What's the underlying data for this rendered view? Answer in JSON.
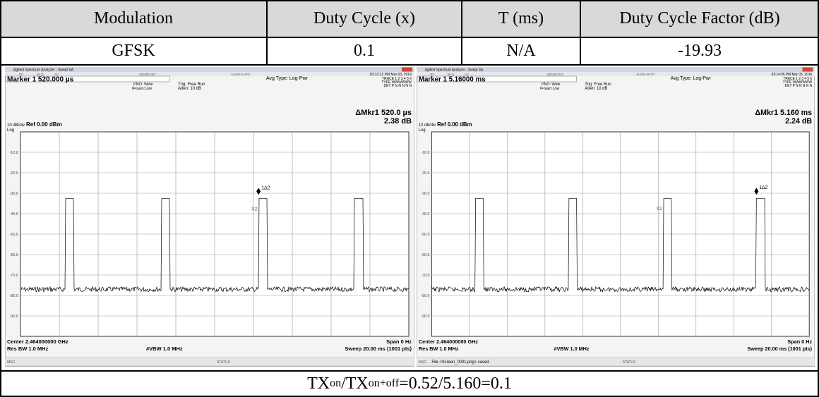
{
  "table": {
    "header": [
      "Modulation",
      "Duty Cycle (x)",
      "T (ms)",
      "Duty Cycle Factor (dB)"
    ],
    "row": [
      "GFSK",
      "0.1",
      "N/A",
      "-19.93"
    ]
  },
  "screens": [
    {
      "window_title": "Agilent Spectrum Analyzer - Swept SA",
      "status_row": [
        "RF",
        "50 Ω",
        "AC",
        "SENSE:INT",
        "ALIGN AUTO"
      ],
      "timestamp": "03:12:12 PM Mar 03, 2016",
      "marker": "Marker 1 520.000 µs",
      "pno": "PNO: Wide",
      "ifgain": "IFGain:Low",
      "trig": "Trig: Free Run",
      "atten": "Atten: 10 dB",
      "avg_type": "Avg Type: Log-Pwr",
      "trace": "TRACE 1 2 3 4 5 6",
      "type": "TYPE WWWWWW",
      "det": "DET P N N N N N",
      "delta_marker": "ΔMkr1 520.0 µs",
      "delta_value": "2.38 dB",
      "scale": "10 dB/div",
      "ref": "Ref 0.00 dBm",
      "log": "Log",
      "y_labels": [
        "-10.0",
        "-20.0",
        "-30.0",
        "-40.0",
        "-50.0",
        "-60.0",
        "-70.0",
        "-80.0",
        "-90.0"
      ],
      "marker_label": "1Δ2",
      "x_marker_label": "X2",
      "center": "Center 2.464000000 GHz",
      "res_bw": "Res BW 1.0 MHz",
      "vbw": "#VBW 1.0 MHz",
      "span": "Span 0 Hz",
      "sweep": "Sweep 20.00 ms (1001 pts)",
      "msg": "MSG",
      "status": "STATUS"
    },
    {
      "window_title": "Agilent Spectrum Analyzer - Swept SA",
      "status_row": [
        "RF",
        "50 Ω",
        "AC",
        "SENSE:INT",
        "ALIGN AUTO"
      ],
      "timestamp": "03:14:05 PM Mar 03, 2016",
      "marker": "Marker 1 5.16000 ms",
      "pno": "PNO: Wide",
      "ifgain": "IFGain:Low",
      "trig": "Trig: Free Run",
      "atten": "Atten: 10 dB",
      "avg_type": "Avg Type: Log-Pwr",
      "trace": "TRACE 1 2 3 4 5 6",
      "type": "TYPE WWWWWW",
      "det": "DET P N N N N N",
      "delta_marker": "ΔMkr1 5.160 ms",
      "delta_value": "2.24 dB",
      "scale": "10 dB/div",
      "ref": "Ref 0.00 dBm",
      "log": "Log",
      "y_labels": [
        "-10.0",
        "-20.0",
        "-30.0",
        "-40.0",
        "-50.0",
        "-60.0",
        "-70.0",
        "-80.0",
        "-90.0"
      ],
      "marker_label": "1Δ2",
      "x_marker_label": "X2",
      "center": "Center 2.464000000 GHz",
      "res_bw": "Res BW 1.0 MHz",
      "vbw": "#VBW 1.0 MHz",
      "span": "Span 0 Hz",
      "sweep": "Sweep 20.00 ms (1001 pts)",
      "msg": "MSG",
      "file_msg": "File <Screen_0001.png> saved",
      "status": "STATUS"
    }
  ],
  "formula": {
    "tx1": "TX",
    "sub1": "on",
    "tx2": "/TX",
    "sub2": "on+off",
    "rest": "=0.52/5.160=0.1"
  }
}
